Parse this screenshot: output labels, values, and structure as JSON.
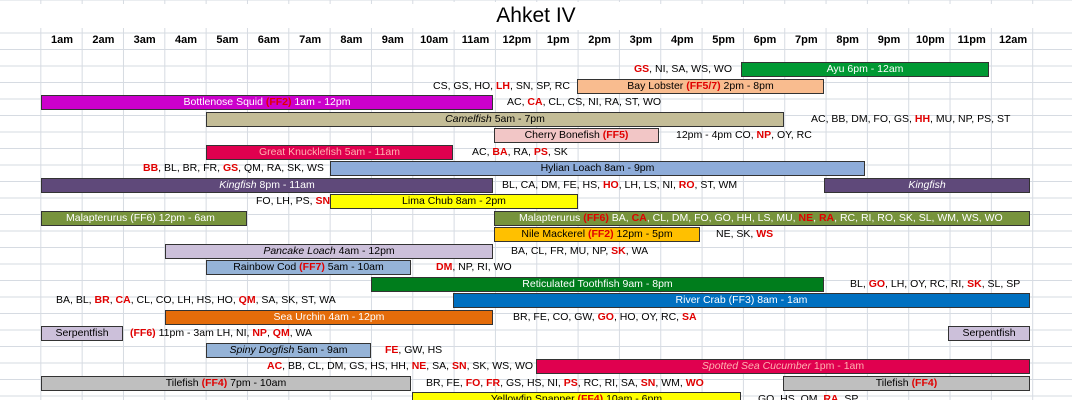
{
  "title": "Ahket IV",
  "hours": [
    "1am",
    "2am",
    "3am",
    "4am",
    "5am",
    "6am",
    "7am",
    "8am",
    "9am",
    "10am",
    "11am",
    "12pm",
    "1pm",
    "2pm",
    "3pm",
    "4pm",
    "5pm",
    "6pm",
    "7pm",
    "8pm",
    "9pm",
    "10pm",
    "11pm",
    "12am"
  ],
  "colors": {
    "green": "#009933",
    "peach": "#f9bc8f",
    "magenta": "#cc00cc",
    "khaki": "#c4bd97",
    "pink": "#f2c6c6",
    "crimson": "#e0004f",
    "blue": "#8eacd9",
    "purple": "#5f497a",
    "yellow": "#ffff00",
    "olive": "#77933c",
    "orange": "#ffc000",
    "lavender": "#ccc0da",
    "steel": "#95b3d7",
    "darkgreen": "#007d1c",
    "royal": "#0070c0",
    "rust": "#e46c0a",
    "grey": "#bfbfbf",
    "red_text": "#e00000"
  },
  "rows": [
    {
      "notes": [
        {
          "parts": [
            {
              "t": "GS",
              "r": true
            },
            {
              "t": ", NI, SA, WS, WO"
            }
          ]
        }
      ],
      "bars": [
        {
          "label": "Ayu  6pm - 12am",
          "parts": [
            {
              "t": "Ayu  6pm - 12am"
            }
          ],
          "color": "green",
          "text": "white"
        }
      ]
    },
    {
      "notes": [
        {
          "parts": [
            {
              "t": "CS, GS, HO, "
            },
            {
              "t": "LH",
              "r": true
            },
            {
              "t": ", SN, SP, RC"
            }
          ]
        }
      ],
      "bars": [
        {
          "parts": [
            {
              "t": "Bay Lobster "
            },
            {
              "t": "(FF5/7)",
              "r": true
            },
            {
              "t": " 2pm - 8pm"
            }
          ],
          "color": "peach"
        }
      ]
    },
    {
      "notes": [
        {
          "parts": [
            {
              "t": "AC, "
            },
            {
              "t": "CA",
              "r": true
            },
            {
              "t": ", CL, CS, NI, RA, ST, WO"
            }
          ]
        }
      ],
      "bars": [
        {
          "parts": [
            {
              "t": "Bottlenose Squid "
            },
            {
              "t": "(FF2)",
              "r": true
            },
            {
              "t": "  1am - 12pm"
            }
          ],
          "color": "magenta",
          "text": "white"
        }
      ]
    },
    {
      "notes": [
        {
          "parts": [
            {
              "t": "AC, BB, DM, FO, GS, "
            },
            {
              "t": "HH",
              "r": true
            },
            {
              "t": ", MU, NP, PS, ST"
            }
          ]
        }
      ],
      "bars": [
        {
          "parts": [
            {
              "t": "Camelfish",
              "i": true
            },
            {
              "t": "  5am - 7pm"
            }
          ],
          "color": "khaki"
        }
      ]
    },
    {
      "notes": [
        {
          "parts": [
            {
              "t": "12pm - 4pm  CO, "
            },
            {
              "t": "NP",
              "r": true
            },
            {
              "t": ", OY, RC"
            }
          ]
        }
      ],
      "bars": [
        {
          "parts": [
            {
              "t": "Cherry Bonefish "
            },
            {
              "t": "(FF5)",
              "r": true
            }
          ],
          "color": "pink"
        }
      ]
    },
    {
      "notes": [
        {
          "parts": [
            {
              "t": "AC, "
            },
            {
              "t": "BA",
              "r": true
            },
            {
              "t": ", RA, "
            },
            {
              "t": "PS",
              "r": true
            },
            {
              "t": ", SK"
            }
          ]
        }
      ],
      "bars": [
        {
          "parts": [
            {
              "t": "Great Knucklefish  5am - 11am"
            }
          ],
          "color": "crimson",
          "text": "pinkred"
        }
      ]
    },
    {
      "notes": [
        {
          "parts": [
            {
              "t": "BB",
              "r": true
            },
            {
              "t": ", BL, BR, FR, "
            },
            {
              "t": "GS",
              "r": true
            },
            {
              "t": ", QM, RA, SK, WS"
            }
          ]
        }
      ],
      "bars": [
        {
          "parts": [
            {
              "t": "Hylian Loach  8am - 9pm"
            }
          ],
          "color": "blue"
        }
      ]
    },
    {
      "notes": [
        {
          "parts": [
            {
              "t": "BL, CA, DM, FE, HS, "
            },
            {
              "t": "HO",
              "r": true
            },
            {
              "t": ", LH, LS, NI, "
            },
            {
              "t": "RO",
              "r": true
            },
            {
              "t": ", ST, WM"
            }
          ]
        }
      ],
      "bars": [
        {
          "parts": [
            {
              "t": "Kingfish",
              "i": true
            },
            {
              "t": "  8pm - 11am"
            }
          ],
          "color": "purple",
          "text": "white"
        },
        {
          "parts": [
            {
              "t": "Kingfish",
              "i": true
            }
          ],
          "color": "purple",
          "text": "white"
        }
      ]
    },
    {
      "notes": [
        {
          "parts": [
            {
              "t": "FO, LH, PS, "
            },
            {
              "t": "SN",
              "r": true
            }
          ]
        }
      ],
      "bars": [
        {
          "parts": [
            {
              "t": "Lima Chub  8am - 2pm"
            }
          ],
          "color": "yellow"
        }
      ]
    },
    {
      "notes": [],
      "bars": [
        {
          "parts": [
            {
              "t": "Malapterurus "
            },
            {
              "t": "(FF6)"
            },
            {
              "t": "  12pm - 6am"
            }
          ],
          "color": "olive",
          "text": "white"
        },
        {
          "parts": [
            {
              "t": "Malapterurus  "
            },
            {
              "t": "(FF6)",
              "r": true
            },
            {
              "t": "  BA, "
            },
            {
              "t": "CA",
              "r": true
            },
            {
              "t": ", CL, DM, FO, GO, HH, LS, MU, "
            },
            {
              "t": "NE",
              "r": true
            },
            {
              "t": ", "
            },
            {
              "t": "RA",
              "r": true
            },
            {
              "t": ", RC, RI, RO, SK, SL, WM, WS, WO"
            }
          ],
          "color": "olive",
          "text": "white"
        }
      ]
    },
    {
      "notes": [
        {
          "parts": [
            {
              "t": "NE, SK, "
            },
            {
              "t": "WS",
              "r": true
            }
          ]
        }
      ],
      "bars": [
        {
          "parts": [
            {
              "t": "Nile Mackerel "
            },
            {
              "t": "(FF2)",
              "r": true
            },
            {
              "t": "  12pm - 5pm"
            }
          ],
          "color": "orange"
        }
      ]
    },
    {
      "notes": [
        {
          "parts": [
            {
              "t": "BA, CL, FR, MU, NP, "
            },
            {
              "t": "SK",
              "r": true
            },
            {
              "t": ", WA"
            }
          ]
        }
      ],
      "bars": [
        {
          "parts": [
            {
              "t": "Pancake Loach",
              "i": true
            },
            {
              "t": "  4am - 12pm"
            }
          ],
          "color": "lavender"
        }
      ]
    },
    {
      "notes": [
        {
          "parts": [
            {
              "t": "DM",
              "r": true
            },
            {
              "t": ", NP, RI, WO"
            }
          ]
        }
      ],
      "bars": [
        {
          "parts": [
            {
              "t": "Rainbow Cod "
            },
            {
              "t": "(FF7)",
              "r": true
            },
            {
              "t": "  5am - 10am"
            }
          ],
          "color": "steel"
        }
      ]
    },
    {
      "notes": [
        {
          "parts": [
            {
              "t": "BL, "
            },
            {
              "t": "GO",
              "r": true
            },
            {
              "t": ", LH, OY, RC, RI, "
            },
            {
              "t": "SK",
              "r": true
            },
            {
              "t": ", SL, SP"
            }
          ]
        }
      ],
      "bars": [
        {
          "parts": [
            {
              "t": "Reticulated Toothfish  9am - 8pm"
            }
          ],
          "color": "darkgreen",
          "text": "white"
        }
      ]
    },
    {
      "notes": [
        {
          "parts": [
            {
              "t": "BA, BL, "
            },
            {
              "t": "BR",
              "r": true
            },
            {
              "t": ", "
            },
            {
              "t": "CA",
              "r": true
            },
            {
              "t": ", CL, CO, LH, HS, HO, "
            },
            {
              "t": "QM",
              "r": true
            },
            {
              "t": ", SA, SK, ST, WA"
            }
          ]
        }
      ],
      "bars": [
        {
          "parts": [
            {
              "t": "River Crab "
            },
            {
              "t": "(FF3)"
            },
            {
              "t": "  8am - 1am"
            }
          ],
          "color": "royal",
          "text": "white"
        }
      ]
    },
    {
      "notes": [
        {
          "parts": [
            {
              "t": "BR, FE, CO, GW, "
            },
            {
              "t": "GO",
              "r": true
            },
            {
              "t": ", HO, OY, RC, "
            },
            {
              "t": "SA",
              "r": true
            }
          ]
        }
      ],
      "bars": [
        {
          "parts": [
            {
              "t": "Sea Urchin  4am - 12pm"
            }
          ],
          "color": "rust",
          "text": "white"
        }
      ]
    },
    {
      "notes": [
        {
          "parts": [
            {
              "t": "(FF6)",
              "r": true
            },
            {
              "t": "  11pm - 3am  LH, NI, "
            },
            {
              "t": "NP",
              "r": true
            },
            {
              "t": ", "
            },
            {
              "t": "QM",
              "r": true
            },
            {
              "t": ", WA"
            }
          ]
        }
      ],
      "bars": [
        {
          "parts": [
            {
              "t": "Serpentfish"
            }
          ],
          "color": "lavender"
        },
        {
          "parts": [
            {
              "t": "Serpentfish"
            }
          ],
          "color": "lavender"
        }
      ]
    },
    {
      "notes": [
        {
          "parts": [
            {
              "t": "FE",
              "r": true
            },
            {
              "t": ", GW, HS"
            }
          ]
        }
      ],
      "bars": [
        {
          "parts": [
            {
              "t": "Spiny Dogfish",
              "i": true
            },
            {
              "t": "  5am - 9am"
            }
          ],
          "color": "steel"
        }
      ]
    },
    {
      "notes": [
        {
          "parts": [
            {
              "t": "AC",
              "r": true
            },
            {
              "t": ", BB, CL, DM, GS, HS, HH, "
            },
            {
              "t": "NE",
              "r": true
            },
            {
              "t": ", SA, "
            },
            {
              "t": "SN",
              "r": true
            },
            {
              "t": ", SK, WS, WO"
            }
          ]
        }
      ],
      "bars": [
        {
          "parts": [
            {
              "t": "Spotted Sea Cucumber",
              "i": true
            },
            {
              "t": "  1pm - 1am"
            }
          ],
          "color": "crimson",
          "text": "pinkred"
        }
      ]
    },
    {
      "notes": [
        {
          "parts": [
            {
              "t": "BR, FE, "
            },
            {
              "t": "FO",
              "r": true
            },
            {
              "t": ", "
            },
            {
              "t": "FR",
              "r": true
            },
            {
              "t": ", GS, HS, NI, "
            },
            {
              "t": "PS",
              "r": true
            },
            {
              "t": ", RC, RI, SA, "
            },
            {
              "t": "SN",
              "r": true
            },
            {
              "t": ", WM, "
            },
            {
              "t": "WO",
              "r": true
            }
          ]
        }
      ],
      "bars": [
        {
          "parts": [
            {
              "t": "Tilefish "
            },
            {
              "t": "(FF4)",
              "r": true
            },
            {
              "t": "  7pm - 10am"
            }
          ],
          "color": "grey"
        },
        {
          "parts": [
            {
              "t": "Tilefish "
            },
            {
              "t": "(FF4)",
              "r": true
            }
          ],
          "color": "grey"
        }
      ]
    },
    {
      "notes": [
        {
          "parts": [
            {
              "t": "GO, HS, QM, "
            },
            {
              "t": "RA",
              "r": true
            },
            {
              "t": ", SP"
            }
          ]
        }
      ],
      "bars": [
        {
          "parts": [
            {
              "t": "Yellowfin Snapper "
            },
            {
              "t": "(FF4)",
              "r": true
            },
            {
              "t": "  10am - 6pm"
            }
          ],
          "color": "yellow"
        }
      ]
    }
  ]
}
